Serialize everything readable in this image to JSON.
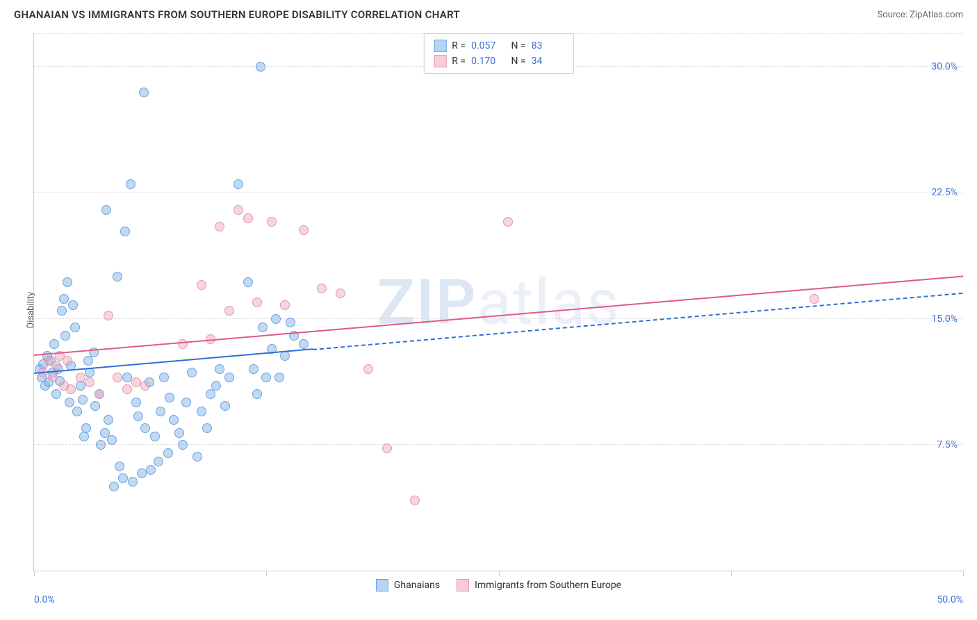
{
  "header": {
    "title": "GHANAIAN VS IMMIGRANTS FROM SOUTHERN EUROPE DISABILITY CORRELATION CHART",
    "source": "Source: ZipAtlas.com"
  },
  "chart": {
    "type": "scatter",
    "ylabel": "Disability",
    "background_color": "#ffffff",
    "grid_color": "#dddddd",
    "axis_color": "#cccccc",
    "watermark": {
      "bold": "ZIP",
      "rest": "atlas"
    },
    "xlim": [
      0,
      50
    ],
    "ylim": [
      0,
      32
    ],
    "xticks": [
      0,
      12.5,
      25,
      37.5,
      50
    ],
    "xtick_labels": {
      "first": "0.0%",
      "last": "50.0%"
    },
    "yticks": [
      7.5,
      15.0,
      22.5,
      30.0
    ],
    "ytick_labels": [
      "7.5%",
      "15.0%",
      "22.5%",
      "30.0%"
    ],
    "tick_label_color": "#3b6fd6",
    "label_fontsize": 13,
    "tick_fontsize": 14,
    "series": [
      {
        "key": "ghanaians",
        "label": "Ghanaians",
        "color_fill": "rgba(120,170,230,0.45)",
        "color_stroke": "#6aa3e0",
        "line_color": "#2e6fd6",
        "swatch_fill": "#b8d4f2",
        "swatch_stroke": "#6aa3e0",
        "marker_radius": 7,
        "R": "0.057",
        "N": "83",
        "trend": {
          "x1": 0,
          "y1": 11.7,
          "x2": 50,
          "y2": 16.5,
          "solid_until_x": 15
        },
        "points": [
          [
            0.3,
            12.0
          ],
          [
            0.4,
            11.5
          ],
          [
            0.5,
            12.3
          ],
          [
            0.6,
            11.0
          ],
          [
            0.7,
            12.8
          ],
          [
            0.8,
            11.2
          ],
          [
            0.9,
            12.5
          ],
          [
            1.0,
            11.8
          ],
          [
            1.1,
            13.5
          ],
          [
            1.2,
            10.5
          ],
          [
            1.3,
            12.0
          ],
          [
            1.4,
            11.3
          ],
          [
            1.5,
            15.5
          ],
          [
            1.6,
            16.2
          ],
          [
            1.7,
            14.0
          ],
          [
            1.8,
            17.2
          ],
          [
            1.9,
            10.0
          ],
          [
            2.0,
            12.2
          ],
          [
            2.1,
            15.8
          ],
          [
            2.2,
            14.5
          ],
          [
            2.3,
            9.5
          ],
          [
            2.5,
            11.0
          ],
          [
            2.6,
            10.2
          ],
          [
            2.7,
            8.0
          ],
          [
            2.8,
            8.5
          ],
          [
            2.9,
            12.5
          ],
          [
            3.0,
            11.8
          ],
          [
            3.2,
            13.0
          ],
          [
            3.3,
            9.8
          ],
          [
            3.5,
            10.5
          ],
          [
            3.6,
            7.5
          ],
          [
            3.8,
            8.2
          ],
          [
            3.9,
            21.5
          ],
          [
            4.0,
            9.0
          ],
          [
            4.2,
            7.8
          ],
          [
            4.3,
            5.0
          ],
          [
            4.5,
            17.5
          ],
          [
            4.6,
            6.2
          ],
          [
            4.8,
            5.5
          ],
          [
            4.9,
            20.2
          ],
          [
            5.0,
            11.5
          ],
          [
            5.2,
            23.0
          ],
          [
            5.3,
            5.3
          ],
          [
            5.5,
            10.0
          ],
          [
            5.6,
            9.2
          ],
          [
            5.8,
            5.8
          ],
          [
            5.9,
            28.5
          ],
          [
            6.0,
            8.5
          ],
          [
            6.2,
            11.2
          ],
          [
            6.3,
            6.0
          ],
          [
            6.5,
            8.0
          ],
          [
            6.7,
            6.5
          ],
          [
            6.8,
            9.5
          ],
          [
            7.0,
            11.5
          ],
          [
            7.2,
            7.0
          ],
          [
            7.3,
            10.3
          ],
          [
            7.5,
            9.0
          ],
          [
            7.8,
            8.2
          ],
          [
            8.0,
            7.5
          ],
          [
            8.2,
            10.0
          ],
          [
            8.5,
            11.8
          ],
          [
            8.8,
            6.8
          ],
          [
            9.0,
            9.5
          ],
          [
            9.3,
            8.5
          ],
          [
            9.5,
            10.5
          ],
          [
            9.8,
            11.0
          ],
          [
            10.0,
            12.0
          ],
          [
            10.3,
            9.8
          ],
          [
            10.5,
            11.5
          ],
          [
            11.0,
            23.0
          ],
          [
            11.5,
            17.2
          ],
          [
            12.0,
            10.5
          ],
          [
            12.3,
            14.5
          ],
          [
            12.5,
            11.5
          ],
          [
            12.8,
            13.2
          ],
          [
            13.0,
            15.0
          ],
          [
            13.5,
            12.8
          ],
          [
            14.0,
            14.0
          ],
          [
            14.5,
            13.5
          ],
          [
            12.2,
            30.0
          ],
          [
            11.8,
            12.0
          ],
          [
            13.2,
            11.5
          ],
          [
            13.8,
            14.8
          ]
        ]
      },
      {
        "key": "immigrants_se",
        "label": "Immigrants from Southern Europe",
        "color_fill": "rgba(240,160,185,0.45)",
        "color_stroke": "#e397b0",
        "line_color": "#e15a8a",
        "swatch_fill": "#f7cdd9",
        "swatch_stroke": "#e397b0",
        "marker_radius": 7,
        "R": "0.170",
        "N": "34",
        "trend": {
          "x1": 0,
          "y1": 12.8,
          "x2": 50,
          "y2": 17.5,
          "solid_until_x": 50
        },
        "points": [
          [
            0.5,
            11.8
          ],
          [
            0.8,
            12.5
          ],
          [
            1.0,
            11.5
          ],
          [
            1.2,
            12.2
          ],
          [
            1.4,
            12.8
          ],
          [
            1.6,
            11.0
          ],
          [
            1.8,
            12.5
          ],
          [
            2.0,
            10.8
          ],
          [
            2.5,
            11.5
          ],
          [
            3.0,
            11.2
          ],
          [
            3.5,
            10.5
          ],
          [
            4.0,
            15.2
          ],
          [
            4.5,
            11.5
          ],
          [
            5.0,
            10.8
          ],
          [
            5.5,
            11.2
          ],
          [
            6.0,
            11.0
          ],
          [
            8.0,
            13.5
          ],
          [
            9.0,
            17.0
          ],
          [
            9.5,
            13.8
          ],
          [
            10.0,
            20.5
          ],
          [
            10.5,
            15.5
          ],
          [
            11.0,
            21.5
          ],
          [
            11.5,
            21.0
          ],
          [
            12.0,
            16.0
          ],
          [
            12.8,
            20.8
          ],
          [
            13.5,
            15.8
          ],
          [
            14.5,
            20.3
          ],
          [
            15.5,
            16.8
          ],
          [
            16.5,
            16.5
          ],
          [
            18.0,
            12.0
          ],
          [
            19.0,
            7.3
          ],
          [
            20.5,
            4.2
          ],
          [
            25.5,
            20.8
          ],
          [
            42.0,
            16.2
          ]
        ]
      }
    ],
    "legend": {
      "categories": [
        "Ghanaians",
        "Immigrants from Southern Europe"
      ]
    }
  }
}
